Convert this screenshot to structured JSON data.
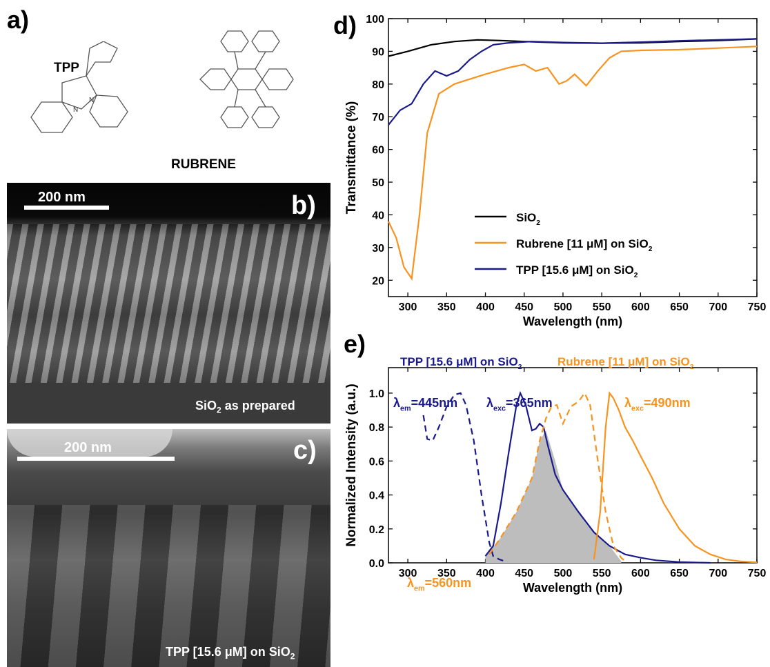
{
  "panels": {
    "a": "a)",
    "b": "b)",
    "c": "c)",
    "d": "d)",
    "e": "e)"
  },
  "molecules": {
    "tpp": "TPP",
    "rubrene": "RUBRENE"
  },
  "sem_b": {
    "scale_label": "200 nm",
    "caption_main": "SiO",
    "caption_sub": "2",
    "caption_rest": " as prepared"
  },
  "sem_c": {
    "scale_label": "200 nm",
    "caption_main": "TPP [15.6 μM] on SiO",
    "caption_sub": "2"
  },
  "colors": {
    "black": "#000000",
    "orange": "#f7931e",
    "navy": "#1a1a8c",
    "shade": "#bdbdbd"
  },
  "chart_data": [
    {
      "type": "line",
      "panel": "d",
      "xlabel": "Wavelength (nm)",
      "ylabel": "Transmittance (%)",
      "xlim": [
        275,
        750
      ],
      "ylim": [
        15,
        100
      ],
      "xticks": [
        300,
        350,
        400,
        450,
        500,
        550,
        600,
        650,
        700,
        750
      ],
      "yticks": [
        20,
        30,
        40,
        50,
        60,
        70,
        80,
        90,
        100
      ],
      "legend": "center-left",
      "series": [
        {
          "name": "SiO2",
          "label_main": "SiO",
          "label_sub": "2",
          "label_rest": "",
          "color": "#000000",
          "x": [
            275,
            300,
            330,
            360,
            390,
            420,
            450,
            500,
            550,
            600,
            650,
            700,
            750
          ],
          "y": [
            88.5,
            90,
            92,
            93,
            93.5,
            93.3,
            93,
            92.6,
            92.5,
            92.6,
            93,
            93.3,
            93.8
          ]
        },
        {
          "name": "Rubrene [11 μM] on SiO2",
          "label_main": "Rubrene [11 μM] on SiO",
          "label_sub": "2",
          "label_rest": "",
          "color": "#f7931e",
          "x": [
            275,
            285,
            295,
            305,
            315,
            325,
            340,
            360,
            400,
            430,
            450,
            465,
            480,
            495,
            505,
            515,
            530,
            545,
            560,
            575,
            600,
            650,
            700,
            750
          ],
          "y": [
            38,
            33,
            24,
            20.5,
            40,
            65,
            77,
            80,
            83,
            85,
            86,
            84,
            85,
            80,
            81,
            83,
            79.5,
            84,
            88,
            90,
            90.3,
            90.5,
            91,
            91.5
          ]
        },
        {
          "name": "TPP [15.6 μM] on SiO2",
          "label_main": "TPP [15.6 μM] on SiO",
          "label_sub": "2",
          "label_rest": "",
          "color": "#1a1a8c",
          "x": [
            275,
            290,
            305,
            320,
            335,
            350,
            365,
            380,
            395,
            410,
            430,
            460,
            500,
            550,
            600,
            650,
            700,
            750
          ],
          "y": [
            67.5,
            72,
            74,
            80,
            84,
            82.5,
            84,
            87.5,
            90,
            92,
            92.6,
            93,
            92.7,
            92.5,
            92.8,
            93.2,
            93.5,
            93.8
          ]
        }
      ]
    },
    {
      "type": "line",
      "panel": "e",
      "xlabel": "Wavelength (nm)",
      "ylabel": "Normalized Intensity (a.u.)",
      "xlim": [
        275,
        750
      ],
      "ylim": [
        0,
        1.15
      ],
      "xticks": [
        300,
        350,
        400,
        450,
        500,
        550,
        600,
        650,
        700,
        750
      ],
      "yticks": [
        0.0,
        0.2,
        0.4,
        0.6,
        0.8,
        1.0
      ],
      "legend_left": "TPP [15.6 μM] on SiO2",
      "legend_left_main": "TPP [15.6 μM] on SiO",
      "legend_right_main": "Rubrene [11 μM] on SiO",
      "legend_sub": "2",
      "annotations": [
        {
          "main": "λ",
          "sub": "em",
          "rest": "=445nm",
          "color": "#1a1a8c"
        },
        {
          "main": "λ",
          "sub": "exc",
          "rest": "=365nm",
          "color": "#1a1a8c"
        },
        {
          "main": "λ",
          "sub": "exc",
          "rest": "=490nm",
          "color": "#f7931e"
        },
        {
          "main": "λ",
          "sub": "em",
          "rest": "=560nm",
          "color": "#f7931e"
        }
      ],
      "series": [
        {
          "name": "TPP excitation",
          "style": "dashed",
          "color": "#1a1a8c",
          "x": [
            320,
            325,
            332,
            340,
            350,
            360,
            368,
            375,
            385,
            395,
            405,
            410,
            418,
            425
          ],
          "y": [
            0.87,
            0.73,
            0.72,
            0.8,
            0.92,
            0.99,
            1.0,
            0.93,
            0.72,
            0.4,
            0.12,
            0.04,
            0.02,
            0.01
          ]
        },
        {
          "name": "TPP emission",
          "style": "solid",
          "color": "#1a1a8c",
          "x": [
            400,
            410,
            420,
            430,
            440,
            445,
            452,
            460,
            465,
            470,
            475,
            480,
            490,
            500,
            520,
            540,
            560,
            580,
            600,
            620,
            650,
            690
          ],
          "y": [
            0.04,
            0.1,
            0.35,
            0.65,
            0.93,
            1.0,
            0.93,
            0.78,
            0.79,
            0.82,
            0.8,
            0.7,
            0.52,
            0.43,
            0.3,
            0.18,
            0.1,
            0.05,
            0.03,
            0.015,
            0.005,
            0.0
          ]
        },
        {
          "name": "Rubrene excitation",
          "style": "dashed",
          "color": "#f7931e",
          "x": [
            405,
            420,
            440,
            460,
            470,
            478,
            485,
            492,
            500,
            510,
            520,
            528,
            535,
            545,
            555,
            565,
            575,
            580
          ],
          "y": [
            0.05,
            0.15,
            0.3,
            0.5,
            0.72,
            0.85,
            0.92,
            0.93,
            0.82,
            0.92,
            0.95,
            1.0,
            0.93,
            0.6,
            0.3,
            0.1,
            0.03,
            0.01
          ]
        },
        {
          "name": "Rubrene emission",
          "style": "solid",
          "color": "#f7931e",
          "x": [
            540,
            548,
            555,
            560,
            565,
            572,
            580,
            590,
            600,
            615,
            630,
            650,
            670,
            690,
            710,
            730,
            750
          ],
          "y": [
            0.02,
            0.3,
            0.8,
            1.0,
            0.97,
            0.9,
            0.8,
            0.72,
            0.63,
            0.5,
            0.35,
            0.2,
            0.1,
            0.05,
            0.02,
            0.008,
            0.003
          ]
        },
        {
          "name": "Overlap",
          "style": "fill",
          "color": "#bdbdbd",
          "x": [
            400,
            420,
            440,
            460,
            470,
            478,
            490,
            500,
            520,
            540,
            560,
            575
          ],
          "y": [
            0.04,
            0.15,
            0.3,
            0.5,
            0.72,
            0.78,
            0.6,
            0.43,
            0.3,
            0.18,
            0.1,
            0.01
          ]
        }
      ]
    }
  ]
}
